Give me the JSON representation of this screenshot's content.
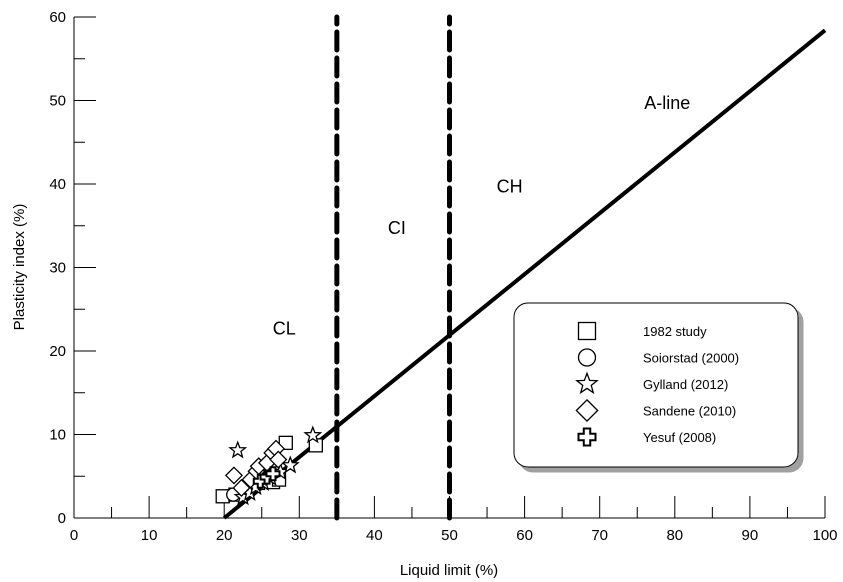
{
  "chart_data": {
    "type": "scatter",
    "xlabel": "Liquid limit (%)",
    "ylabel": "Plasticity index (%)",
    "xlim": [
      0,
      100
    ],
    "ylim": [
      0,
      60
    ],
    "x_ticks": [
      0,
      10,
      20,
      30,
      40,
      50,
      60,
      70,
      80,
      90,
      100
    ],
    "y_ticks": [
      0,
      10,
      20,
      30,
      40,
      50,
      60
    ],
    "grid": false,
    "legend_position": "lower-right",
    "reference_lines": [
      {
        "name": "A-line",
        "style": "solid",
        "points": [
          [
            20,
            0
          ],
          [
            100,
            58.4
          ]
        ]
      },
      {
        "style": "dashed",
        "x": 35
      },
      {
        "style": "dashed",
        "x": 50
      }
    ],
    "region_labels": [
      {
        "text": "CL",
        "x": 28,
        "y": 22
      },
      {
        "text": "CI",
        "x": 43,
        "y": 34
      },
      {
        "text": "CH",
        "x": 58,
        "y": 39
      },
      {
        "text": "A-line",
        "x": 79,
        "y": 49
      }
    ],
    "series": [
      {
        "name": "1982 study",
        "marker": "square",
        "points": [
          [
            19.8,
            2.6
          ],
          [
            21.5,
            2.8
          ],
          [
            23,
            3.4
          ],
          [
            24.5,
            4.2
          ],
          [
            25.5,
            5.0
          ],
          [
            26.5,
            4.3
          ],
          [
            27.3,
            4.6
          ],
          [
            28.2,
            9.0
          ],
          [
            32.2,
            8.7
          ]
        ]
      },
      {
        "name": "Soiorstad (2000)",
        "marker": "circle",
        "points": [
          [
            21.2,
            2.8
          ],
          [
            22.8,
            3.2
          ],
          [
            24.2,
            4.0
          ]
        ]
      },
      {
        "name": "Gylland (2012)",
        "marker": "star",
        "points": [
          [
            21.8,
            8.1
          ],
          [
            22.5,
            2.5
          ],
          [
            23.4,
            3.0
          ],
          [
            24.2,
            3.7
          ],
          [
            25.2,
            4.2
          ],
          [
            26.2,
            4.8
          ],
          [
            27.5,
            5.5
          ],
          [
            28.8,
            6.3
          ],
          [
            31.8,
            9.9
          ]
        ]
      },
      {
        "name": "Sandene (2010)",
        "marker": "diamond",
        "points": [
          [
            21.3,
            5.1
          ],
          [
            22.3,
            3.6
          ],
          [
            23.5,
            4.6
          ],
          [
            24.3,
            5.6
          ],
          [
            24.6,
            6.2
          ],
          [
            25.7,
            6.6
          ],
          [
            26.4,
            7.8
          ],
          [
            26.9,
            8.3
          ],
          [
            27.2,
            7.0
          ]
        ]
      },
      {
        "name": "Yesuf (2008)",
        "marker": "cross",
        "points": [
          [
            24.8,
            4.4
          ],
          [
            25.7,
            4.9
          ],
          [
            26.5,
            5.3
          ]
        ]
      }
    ]
  }
}
